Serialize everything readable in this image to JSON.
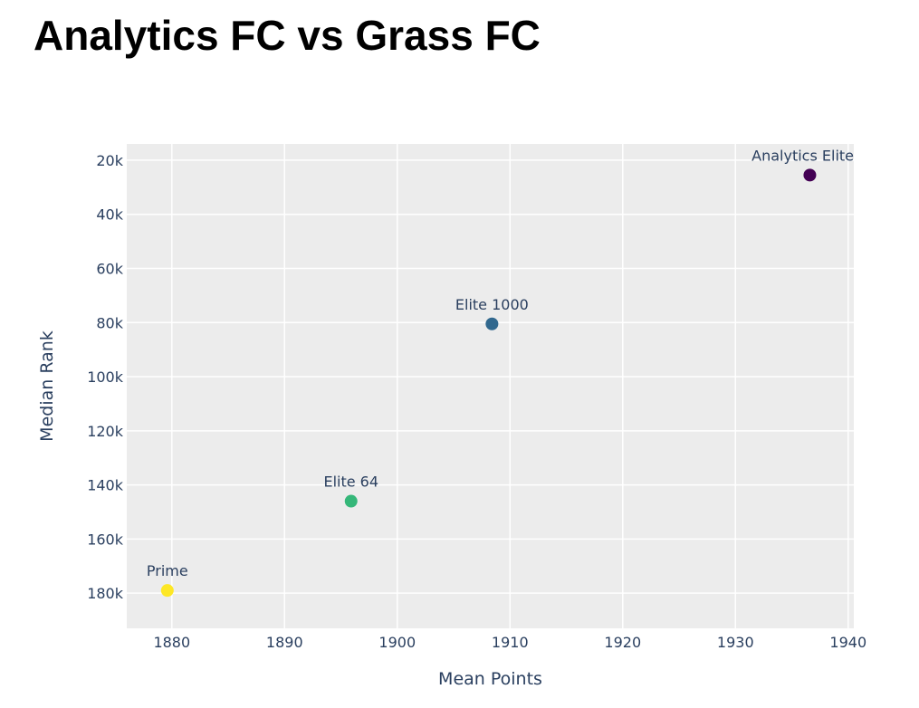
{
  "chart_data": {
    "type": "scatter",
    "title": "Analytics FC vs Grass FC",
    "xlabel": "Mean Points",
    "ylabel": "Median Rank",
    "xlim": [
      1876,
      1940.5
    ],
    "ylim": [
      193000,
      14000
    ],
    "y_reversed": true,
    "grid": true,
    "xticks": [
      1880,
      1890,
      1900,
      1910,
      1920,
      1930,
      1940
    ],
    "xtick_labels": [
      "1880",
      "1890",
      "1900",
      "1910",
      "1920",
      "1930",
      "1940"
    ],
    "yticks": [
      20000,
      40000,
      60000,
      80000,
      100000,
      120000,
      140000,
      160000,
      180000
    ],
    "ytick_labels": [
      "20k",
      "40k",
      "60k",
      "80k",
      "100k",
      "120k",
      "140k",
      "160k",
      "180k"
    ],
    "points": [
      {
        "label": "Analytics Elite",
        "x": 1936.6,
        "y": 25500,
        "color": "#440154"
      },
      {
        "label": "Elite 1000",
        "x": 1908.4,
        "y": 80500,
        "color": "#31688e"
      },
      {
        "label": "Elite 64",
        "x": 1895.9,
        "y": 146000,
        "color": "#35b779"
      },
      {
        "label": "Prime",
        "x": 1879.6,
        "y": 179000,
        "color": "#fde725"
      }
    ]
  },
  "colors": {
    "plot_bg": "#ececec",
    "grid": "#ffffff",
    "text": "#2a3f5f"
  }
}
